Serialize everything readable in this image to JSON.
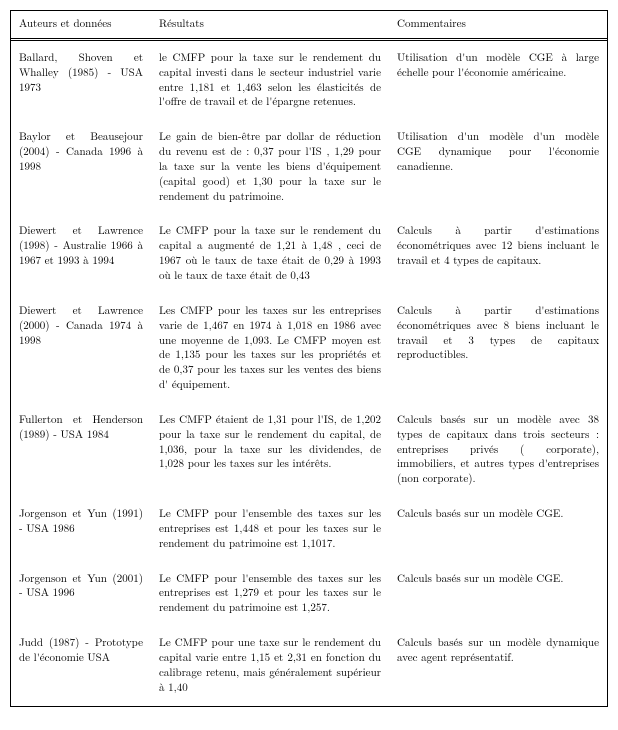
{
  "header": {
    "c1": "Auteurs et données",
    "c2": "Résultats",
    "c3": "Commentaires"
  },
  "rows": [
    {
      "c1": "Ballard, Shoven et Whalley (1985) - USA 1973",
      "c2": "le CMFP pour la taxe sur le rendement du capital investi dans le secteur industriel varie entre 1,181 et 1,463 selon les élasticités de l'offre de travail et de l'épargne retenues.",
      "c3": "Utilisation d'un modèle CGE à large échelle pour l'économie américaine."
    },
    {
      "c1": "Baylor et Beausejour (2004) - Canada 1996 à 1998",
      "c2": "Le gain de bien-être par dollar de réduction du revenu est de : 0,37 pour l'IS , 1,29 pour la taxe sur la vente les biens d'équipement (capital good) et 1,30 pour la taxe sur le rendement du patrimoine.",
      "c3": "Utilisation d'un modèle d'un modèle CGE dynamique pour l'économie canadienne."
    },
    {
      "c1": "Diewert et Lawrence (1998) - Australie 1966 à 1967 et 1993 à 1994",
      "c2": "Le CMFP pour la taxe sur le rendement du capital a augmenté de 1,21 à 1,48 , ceci de 1967 où le taux de taxe était de 0,29 à 1993 où le taux de taxe était de 0,43",
      "c3": "Calculs à partir d'estimations économétriques avec 12 biens incluant le travail et 4 types de capitaux."
    },
    {
      "c1": "Diewert et Lawrence (2000) - Canada 1974 à 1998",
      "c2": "Les CMFP pour les taxes sur les entreprises varie de 1,467 en 1974 à 1,018 en 1986 avec une moyenne de 1,093. Le CMFP moyen est de 1,135 pour les taxes sur les propriétés et de 0,37 pour les taxes sur les ventes des biens d' équipement.",
      "c3": "Calculs à partir d'estimations économétriques avec 8 biens incluant le travail et 3 types de capitaux reproductibles."
    },
    {
      "c1": "Fullerton et Henderson (1989) - USA 1984",
      "c2": "Les CMFP étaient de 1,31 pour l'IS, de 1,202 pour la taxe sur le rendement du capital, de 1,036, pour la taxe sur les dividendes, de 1,028 pour les taxes sur les intérêts.",
      "c3": "Calculs basés sur un modèle avec 38 types de capitaux dans trois secteurs : entreprises privés ( corporate), immobiliers, et autres types d'entreprises (non corporate)."
    },
    {
      "c1": "Jorgenson et Yun (1991) - USA 1986",
      "c2": "Le CMFP pour l'ensemble des taxes sur les entreprises est 1,448 et pour les taxes sur le rendement du patrimoine est 1,1017.",
      "c3": "Calculs basés sur un modèle CGE."
    },
    {
      "c1": "Jorgenson et Yun (2001) - USA 1996",
      "c2": "Le CMFP pour l'ensemble des taxes sur les entreprises est 1,279 et pour les taxes sur le rendement du patrimoine est 1,257.",
      "c3": "Calculs basés sur un modèle CGE."
    },
    {
      "c1": "Judd (1987) - Prototype de l'économie USA",
      "c2": "Le CMFP pour une taxe sur le rendement du capital varie entre 1,15 et 2,31 en fonction du calibrage retenu, mais généralement supérieur à 1,40",
      "c3": "Calculs basés sur un modèle dynamique avec agent représentatif."
    }
  ]
}
